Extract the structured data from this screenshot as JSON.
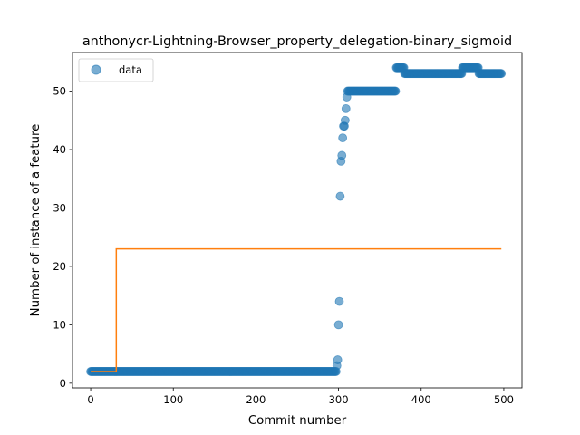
{
  "chart_data": {
    "type": "scatter",
    "title": "anthonycr-Lightning-Browser_property_delegation-binary_sigmoid",
    "xlabel": "Commit number",
    "ylabel": "Number of instance of a feature",
    "xlim": [
      -22,
      522
    ],
    "ylim": [
      -0.8,
      56.6
    ],
    "xticks": [
      0,
      100,
      200,
      300,
      400,
      500
    ],
    "yticks": [
      0,
      10,
      20,
      30,
      40,
      50
    ],
    "grid": false,
    "legend_position": "top-left",
    "series": [
      {
        "name": "data",
        "kind": "points",
        "color": "#1f77b4",
        "segments": [
          {
            "from": 0,
            "to": 296,
            "y": 2
          },
          {
            "from": 311,
            "to": 369,
            "y": 50
          },
          {
            "from": 370,
            "to": 379,
            "y": 54
          },
          {
            "from": 380,
            "to": 449,
            "y": 53
          },
          {
            "from": 450,
            "to": 469,
            "y": 54
          },
          {
            "from": 470,
            "to": 497,
            "y": 53
          }
        ],
        "points": [
          [
            297,
            2
          ],
          [
            298,
            3
          ],
          [
            299,
            4
          ],
          [
            300,
            10
          ],
          [
            301,
            14
          ],
          [
            302,
            32
          ],
          [
            303,
            38
          ],
          [
            304,
            39
          ],
          [
            305,
            42
          ],
          [
            306,
            44
          ],
          [
            307,
            44
          ],
          [
            308,
            45
          ],
          [
            309,
            47
          ],
          [
            310,
            49
          ]
        ]
      },
      {
        "name": "",
        "kind": "step-line",
        "color": "#ff7f0e",
        "points": [
          [
            0,
            2
          ],
          [
            31,
            2
          ],
          [
            31,
            23
          ],
          [
            497,
            23
          ]
        ]
      }
    ]
  }
}
